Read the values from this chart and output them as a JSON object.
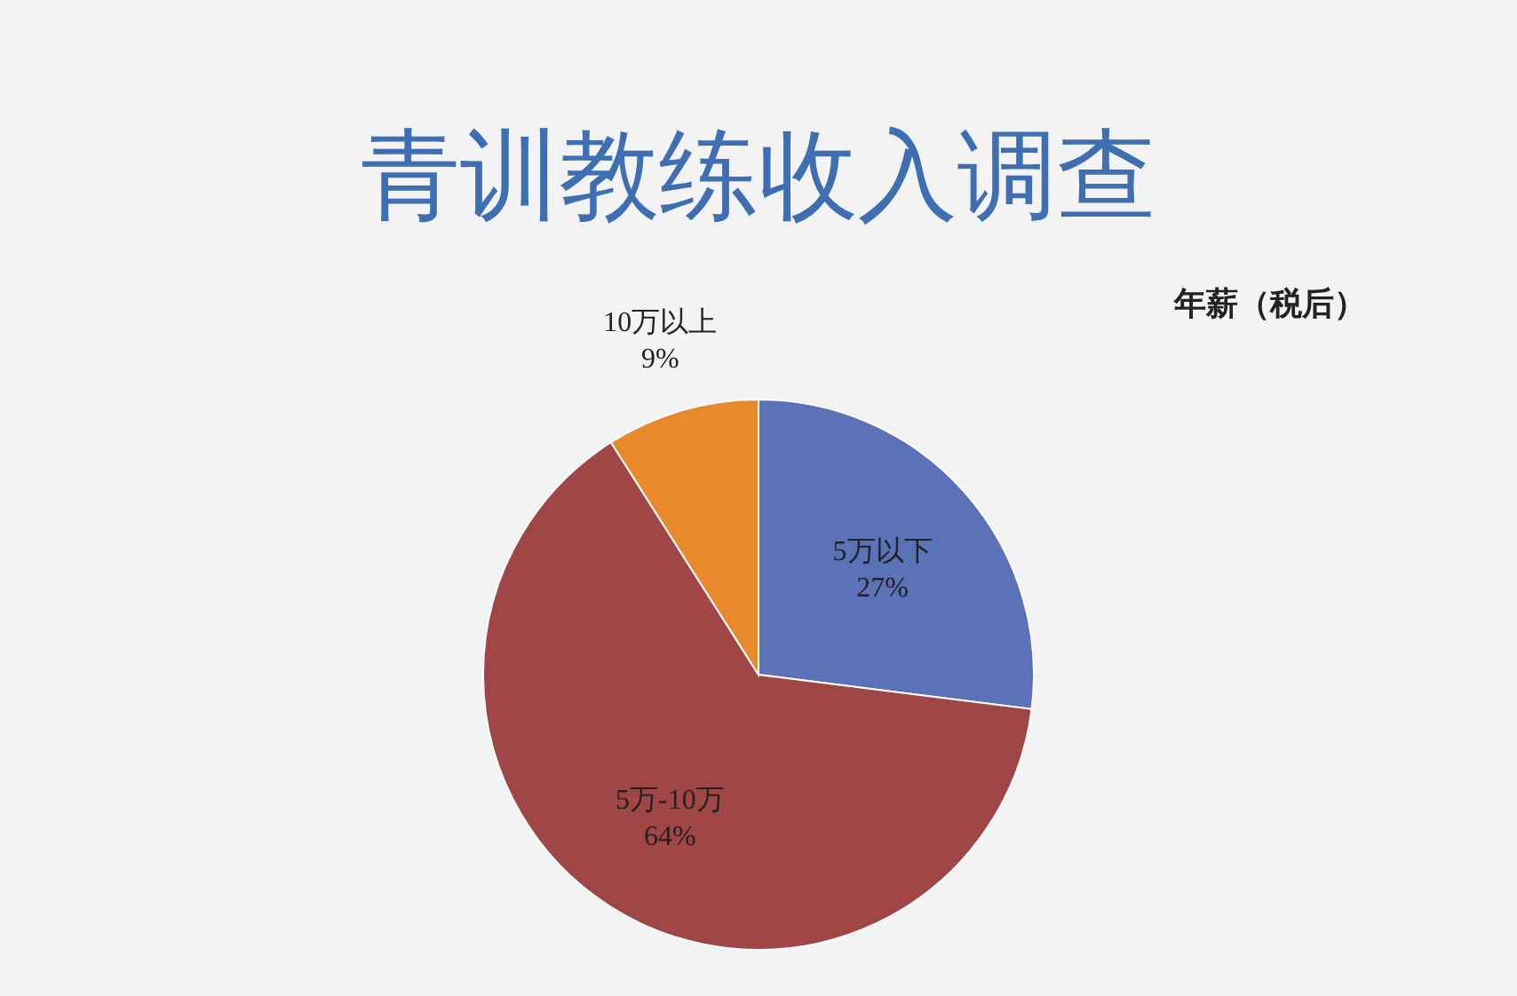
{
  "chart_data": {
    "type": "pie",
    "title": "青训教练收入调查",
    "subtitle": "年薪（税后）",
    "categories": [
      "5万以下",
      "5万-10万",
      "10万以上"
    ],
    "values": [
      27,
      64,
      9
    ],
    "colors": [
      "#5b72b8",
      "#a14646",
      "#e8892b"
    ],
    "value_labels": [
      "27%",
      "64%",
      "9%"
    ]
  }
}
